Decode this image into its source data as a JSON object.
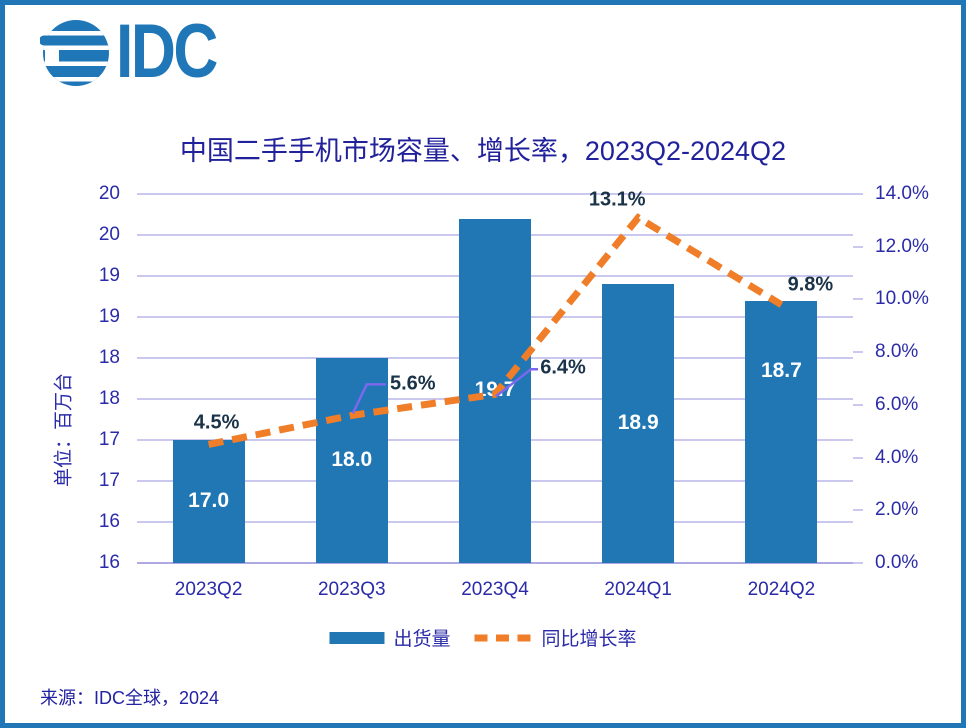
{
  "logo": {
    "text": "IDC"
  },
  "title": "中国二手手机市场容量、增长率，2023Q2-2024Q2",
  "source": "来源：IDC全球，2024",
  "legend": [
    {
      "label": "出货量",
      "swatch": "bar",
      "color": "#2077B4"
    },
    {
      "label": "同比增长率",
      "swatch": "dashed-line",
      "color": "#F07D27"
    }
  ],
  "colors": {
    "brand_blue": "#2077B8",
    "bar_blue": "#2077B4",
    "line_orange": "#F07D27",
    "leader_purple": "#7B68EE",
    "gridline": "#CBC8F0",
    "axis_line": "#AEA9E2",
    "title_navy": "#21219B",
    "tick_label_blue": "#2B2BAA",
    "data_label_dark": "#1B3348",
    "frame_blue": "#2176B5"
  },
  "chart_data": {
    "type": "combo",
    "title": "中国二手手机市场容量、增长率，2023Q2-2024Q2",
    "categories": [
      "2023Q2",
      "2023Q3",
      "2023Q4",
      "2024Q1",
      "2024Q2"
    ],
    "series": [
      {
        "name": "出货量",
        "type": "bar",
        "axis": "left",
        "unit": "百万台",
        "color": "#2077B4",
        "values": [
          17.0,
          18.0,
          19.7,
          18.9,
          18.7
        ],
        "labels": [
          "17.0",
          "18.0",
          "19.7",
          "18.9",
          "18.7"
        ]
      },
      {
        "name": "同比增长率",
        "type": "line",
        "style": "dashed",
        "axis": "right",
        "color": "#F07D27",
        "values": [
          4.5,
          5.6,
          6.4,
          13.1,
          9.8
        ],
        "labels": [
          "4.5%",
          "5.6%",
          "6.4%",
          "13.1%",
          "9.8%"
        ]
      }
    ],
    "left_axis": {
      "title": "单位：百万台",
      "min": 15.5,
      "max": 20,
      "step": 0.5,
      "tick_labels": [
        "20",
        "20",
        "19",
        "19",
        "18",
        "18",
        "17",
        "17",
        "16",
        "16"
      ]
    },
    "right_axis": {
      "min": 0,
      "max": 14,
      "step": 2,
      "tick_labels": [
        "14.0%",
        "12.0%",
        "10.0%",
        "8.0%",
        "6.0%",
        "4.0%",
        "2.0%",
        "0.0%"
      ]
    },
    "grid": true,
    "legend_position": "bottom"
  }
}
